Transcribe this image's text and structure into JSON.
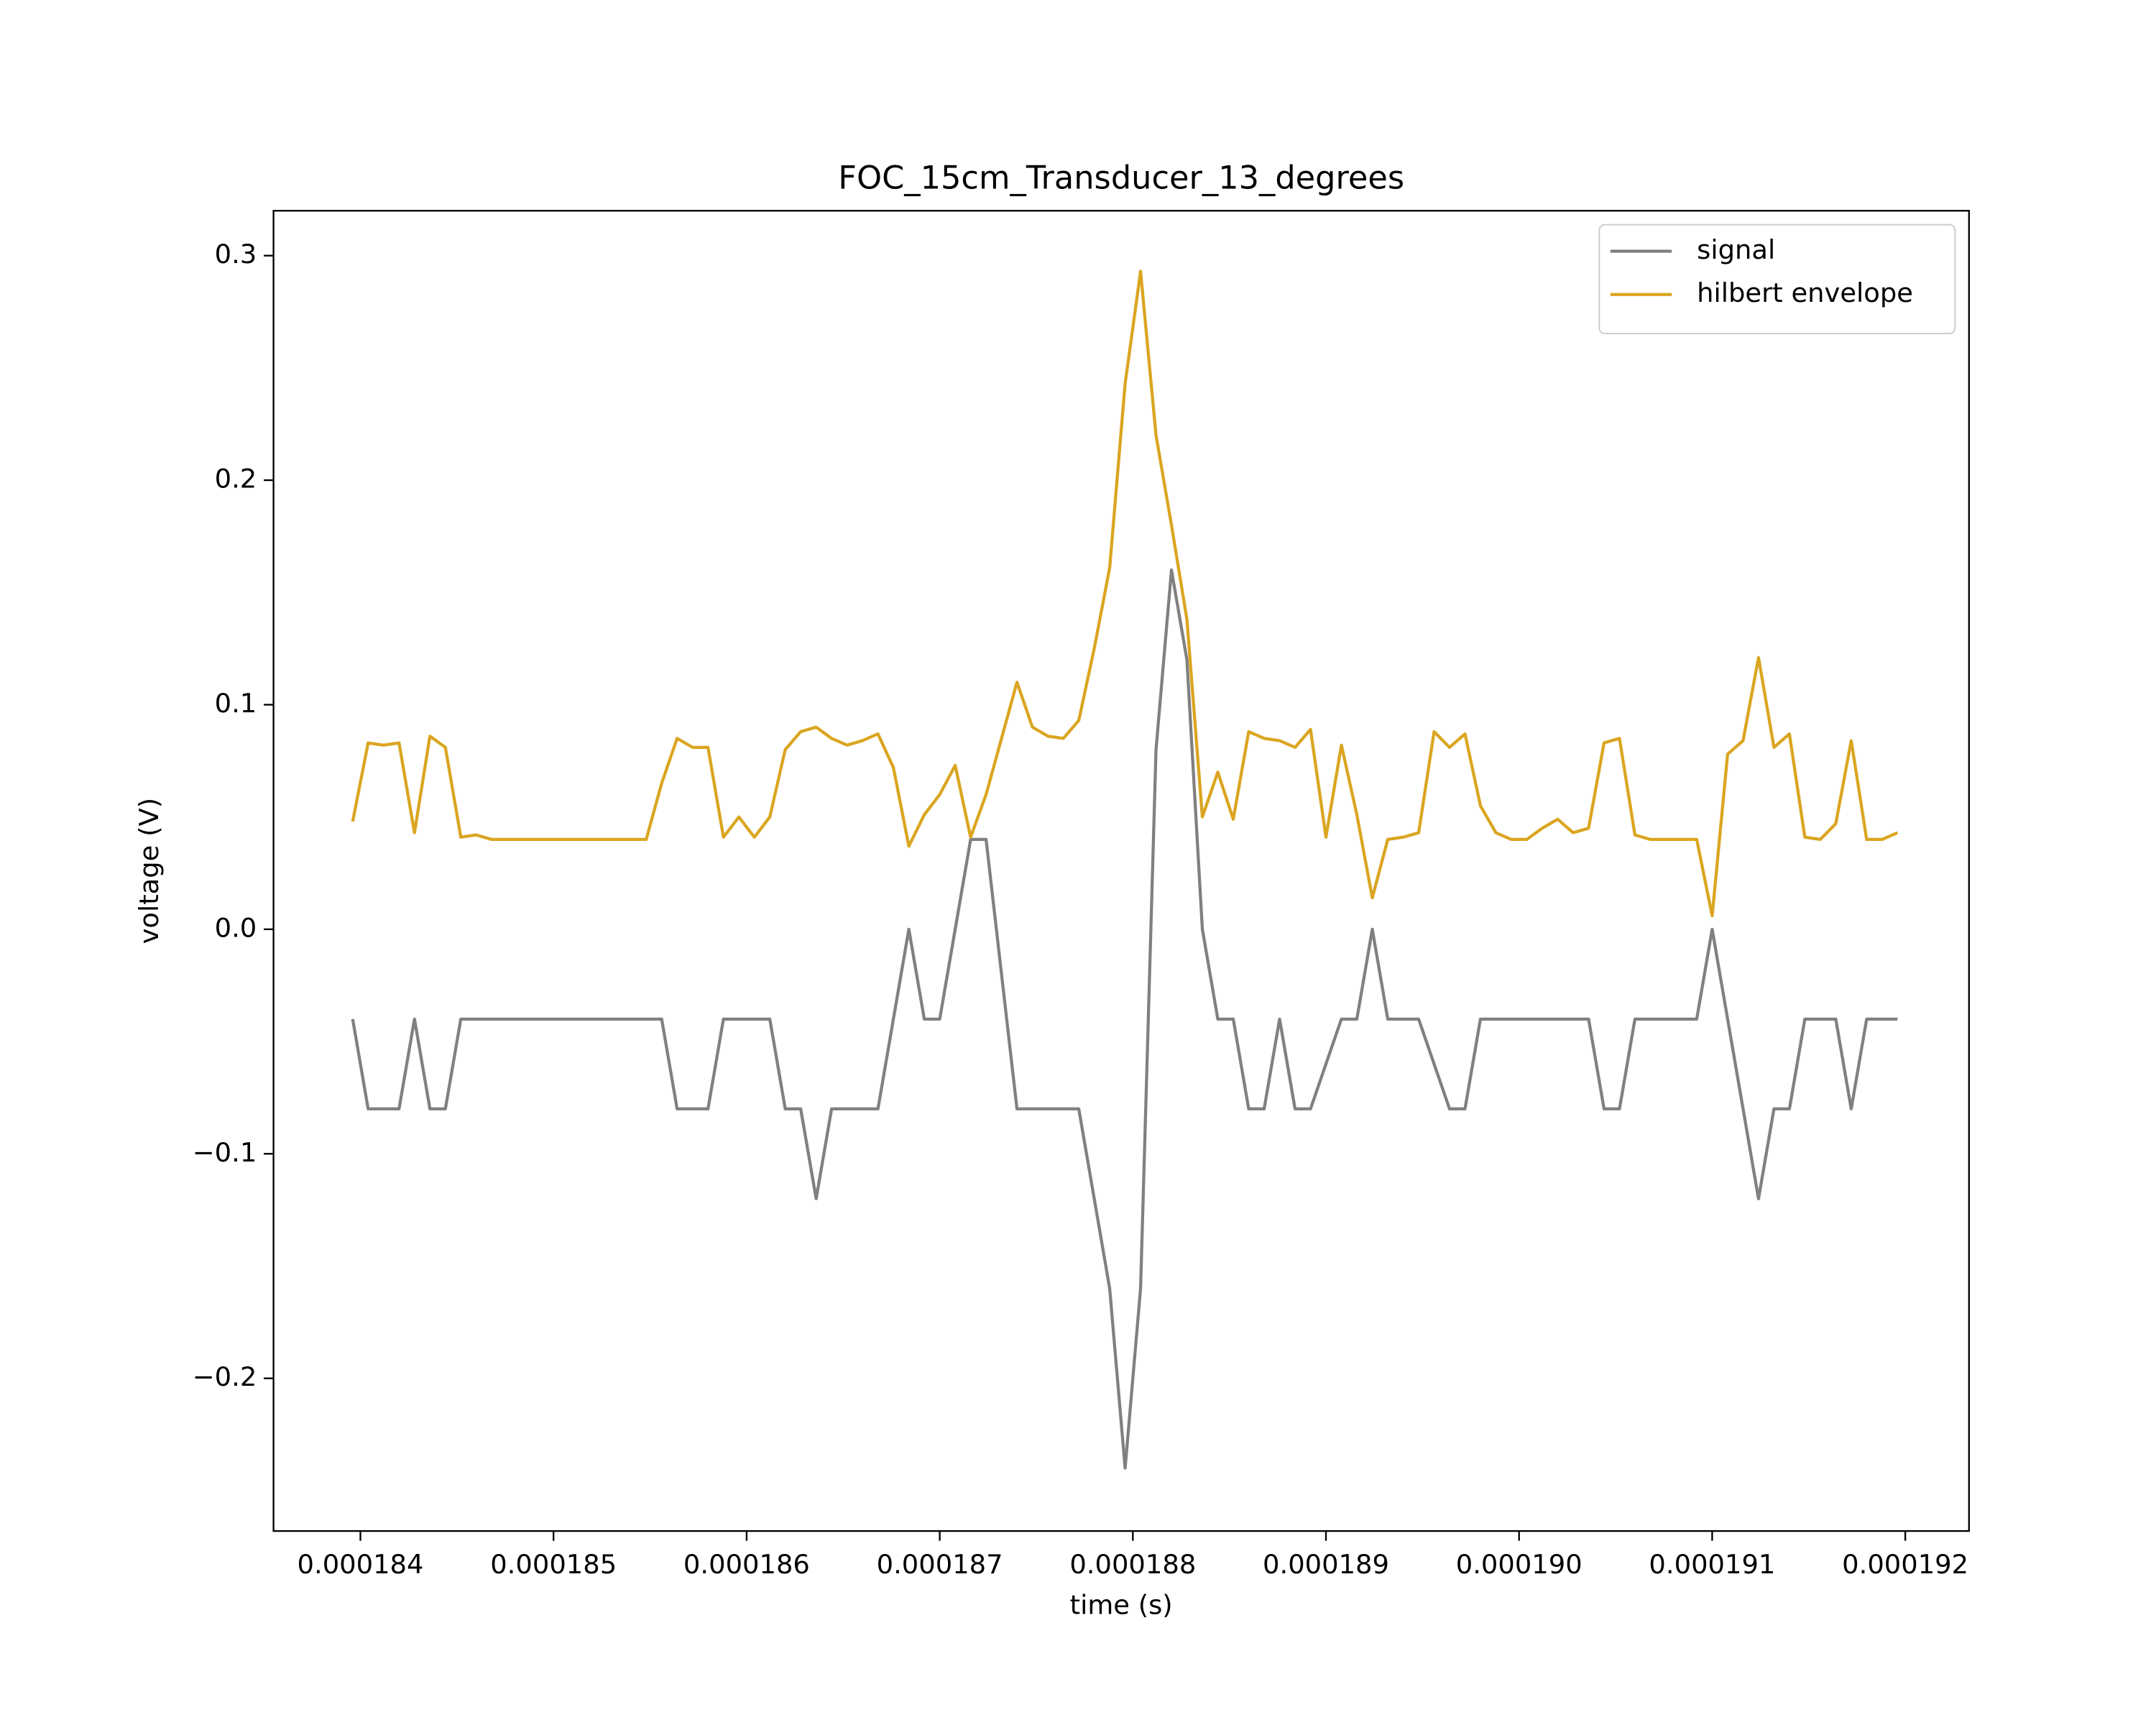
{
  "chart_data": {
    "type": "line",
    "title": "FOC_15cm_Transducer_13_degrees",
    "x_label": "time (s)",
    "y_label": "voltage (V)",
    "x": [
      0.00018396,
      0.00018404,
      0.00018412,
      0.0001842,
      0.00018428,
      0.00018436,
      0.00018444,
      0.00018452,
      0.0001846,
      0.00018468,
      0.00018476,
      0.00018484,
      0.00018492,
      0.000185,
      0.00018508,
      0.00018516,
      0.00018524,
      0.00018532,
      0.0001854,
      0.00018548,
      0.00018556,
      0.00018564,
      0.00018572,
      0.0001858,
      0.00018588,
      0.00018596,
      0.00018604,
      0.00018612,
      0.0001862,
      0.00018628,
      0.00018636,
      0.00018644,
      0.00018652,
      0.0001866,
      0.00018668,
      0.00018676,
      0.00018684,
      0.00018692,
      0.000187,
      0.00018708,
      0.00018716,
      0.00018724,
      0.00018732,
      0.0001874,
      0.00018748,
      0.00018756,
      0.00018764,
      0.00018772,
      0.0001878,
      0.00018788,
      0.00018796,
      0.00018804,
      0.00018812,
      0.0001882,
      0.00018828,
      0.00018836,
      0.00018844,
      0.00018852,
      0.0001886,
      0.00018868,
      0.00018876,
      0.00018884,
      0.00018892,
      0.000189,
      0.00018908,
      0.00018916,
      0.00018924,
      0.00018932,
      0.0001894,
      0.00018948,
      0.00018956,
      0.00018964,
      0.00018972,
      0.0001898,
      0.00018988,
      0.00018996,
      0.00019004,
      0.00019012,
      0.0001902,
      0.00019028,
      0.00019036,
      0.00019044,
      0.00019052,
      0.0001906,
      0.00019068,
      0.00019076,
      0.00019084,
      0.00019092,
      0.000191,
      0.00019108,
      0.00019116,
      0.00019124,
      0.00019132,
      0.0001914,
      0.00019148,
      0.00019156,
      0.00019164,
      0.00019172,
      0.0001918,
      0.00019188,
      0.00019196
    ],
    "series": [
      {
        "name": "signal",
        "color": "#808080",
        "values": [
          -0.04,
          -0.08,
          -0.08,
          -0.08,
          -0.04,
          -0.08,
          -0.08,
          -0.04,
          -0.04,
          -0.04,
          -0.04,
          -0.04,
          -0.04,
          -0.04,
          -0.04,
          -0.04,
          -0.04,
          -0.04,
          -0.04,
          -0.04,
          -0.04,
          -0.08,
          -0.08,
          -0.08,
          -0.04,
          -0.04,
          -0.04,
          -0.04,
          -0.08,
          -0.08,
          -0.12,
          -0.08,
          -0.08,
          -0.08,
          -0.08,
          -0.04,
          0,
          -0.04,
          -0.04,
          0,
          0.04,
          0.04,
          -0.02,
          -0.08,
          -0.08,
          -0.08,
          -0.08,
          -0.08,
          -0.12,
          -0.16,
          -0.24,
          -0.16,
          0.08,
          0.16,
          0.12,
          0,
          -0.04,
          -0.04,
          -0.08,
          -0.08,
          -0.04,
          -0.08,
          -0.08,
          -0.06,
          -0.04,
          -0.04,
          0,
          -0.04,
          -0.04,
          -0.04,
          -0.06,
          -0.08,
          -0.08,
          -0.04,
          -0.04,
          -0.04,
          -0.04,
          -0.04,
          -0.04,
          -0.04,
          -0.04,
          -0.08,
          -0.08,
          -0.04,
          -0.04,
          -0.04,
          -0.04,
          -0.04,
          0,
          -0.04,
          -0.08,
          -0.12,
          -0.08,
          -0.08,
          -0.04,
          -0.04,
          -0.04,
          -0.08,
          -0.04,
          -0.04,
          -0.04
        ]
      },
      {
        "name": "hilbert envelope",
        "color": "#daa520",
        "values": [
          0.048,
          0.083,
          0.082,
          0.083,
          0.043,
          0.086,
          0.081,
          0.041,
          0.042,
          0.04,
          0.04,
          0.04,
          0.04,
          0.04,
          0.04,
          0.04,
          0.04,
          0.04,
          0.04,
          0.04,
          0.065,
          0.085,
          0.081,
          0.081,
          0.041,
          0.05,
          0.041,
          0.05,
          0.08,
          0.088,
          0.09,
          0.085,
          0.082,
          0.084,
          0.087,
          0.072,
          0.037,
          0.051,
          0.06,
          0.073,
          0.041,
          0.06,
          0.085,
          0.11,
          0.09,
          0.086,
          0.085,
          0.093,
          0.125,
          0.161,
          0.243,
          0.293,
          0.22,
          0.18,
          0.138,
          0.05,
          0.07,
          0.049,
          0.088,
          0.085,
          0.084,
          0.081,
          0.089,
          0.041,
          0.082,
          0.051,
          0.014,
          0.04,
          0.041,
          0.043,
          0.088,
          0.081,
          0.087,
          0.055,
          0.043,
          0.04,
          0.04,
          0.045,
          0.049,
          0.043,
          0.045,
          0.083,
          0.085,
          0.042,
          0.04,
          0.04,
          0.04,
          0.04,
          0.006,
          0.078,
          0.084,
          0.121,
          0.081,
          0.087,
          0.041,
          0.04,
          0.047,
          0.084,
          0.04,
          0.04,
          0.043
        ]
      }
    ],
    "xlim": [
      0.00018355,
      0.00019233
    ],
    "ylim": [
      -0.268,
      0.32
    ],
    "xticks": [
      0.000184,
      0.000185,
      0.000186,
      0.000187,
      0.000188,
      0.000189,
      {
        "value": 0.00019,
        "label": "0.000190"
      },
      0.000191,
      0.000192
    ],
    "yticks": [
      {
        "value": -0.2,
        "label": "−0.2"
      },
      {
        "value": -0.1,
        "label": "−0.1"
      },
      {
        "value": 0,
        "label": "0.0"
      },
      0.1,
      0.2,
      0.3
    ],
    "legend": "upper right",
    "grid": false
  }
}
